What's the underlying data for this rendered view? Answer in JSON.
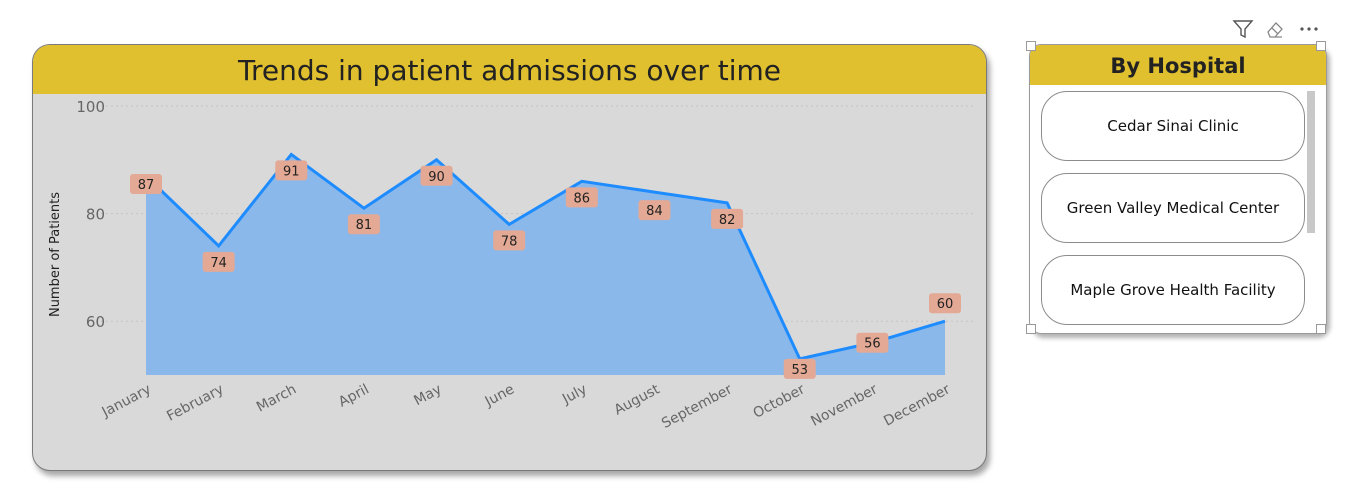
{
  "chart_data": {
    "type": "area",
    "title": "Trends in patient admissions over time",
    "xlabel": "",
    "ylabel": "Number of Patients",
    "categories": [
      "January",
      "February",
      "March",
      "April",
      "May",
      "June",
      "July",
      "August",
      "September",
      "October",
      "November",
      "December"
    ],
    "values": [
      87,
      74,
      91,
      81,
      90,
      78,
      86,
      84,
      82,
      53,
      56,
      60
    ],
    "yticks": [
      60,
      80,
      100
    ],
    "ylim": [
      50,
      100
    ],
    "grid": true,
    "colors": {
      "line": "#1e8cff",
      "area": "#8ab8ea",
      "label_bg": "#e3a995",
      "header": "#e0c02f",
      "plot_bg": "#d9d9d9"
    }
  },
  "slicer": {
    "title": "By Hospital",
    "items": [
      "Cedar Sinai Clinic",
      "Green Valley Medical Center",
      "Maple Grove Health Facility"
    ]
  },
  "toolbar": {
    "icons": [
      "filter-icon",
      "eraser-icon",
      "more-options-icon"
    ]
  }
}
